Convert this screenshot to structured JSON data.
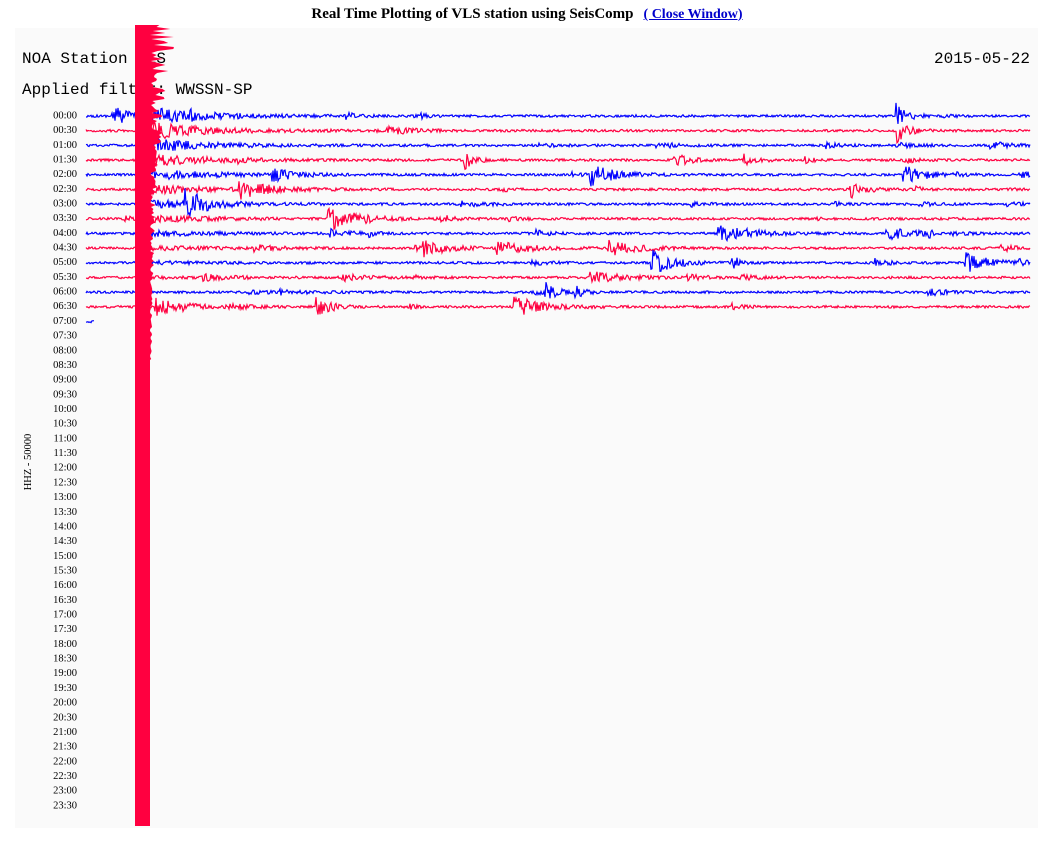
{
  "header": {
    "title": "Real Time Plotting of VLS station using SeisComp",
    "link": "( Close Window)"
  },
  "plot": {
    "station": "NOA Station VLS",
    "filter": "Applied filter: WWSSN-SP",
    "date": "2015-05-22",
    "axis_label": "HHZ - 50000",
    "times": [
      "00:00",
      "00:30",
      "01:00",
      "01:30",
      "02:00",
      "02:30",
      "03:00",
      "03:30",
      "04:00",
      "04:30",
      "05:00",
      "05:30",
      "06:00",
      "06:30",
      "07:00",
      "07:30",
      "08:00",
      "08:30",
      "09:00",
      "09:30",
      "10:00",
      "10:30",
      "11:00",
      "11:30",
      "12:00",
      "12:30",
      "13:00",
      "13:30",
      "14:00",
      "14:30",
      "15:00",
      "15:30",
      "16:00",
      "16:30",
      "17:00",
      "17:30",
      "18:00",
      "18:30",
      "19:00",
      "19:30",
      "20:00",
      "20:30",
      "21:00",
      "21:30",
      "22:00",
      "22:30",
      "23:00",
      "23:30"
    ]
  }
}
